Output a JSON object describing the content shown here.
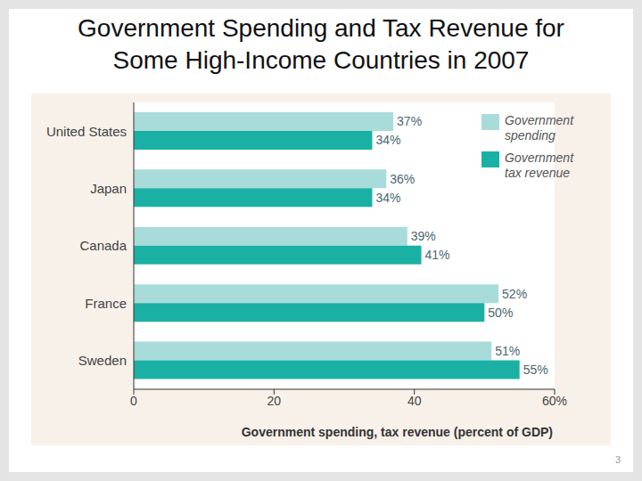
{
  "chart_data": {
    "type": "bar",
    "orientation": "horizontal",
    "title": "Government Spending and Tax Revenue for Some High-Income Countries in 2007",
    "categories": [
      "United States",
      "Japan",
      "Canada",
      "France",
      "Sweden"
    ],
    "series": [
      {
        "name": "Government spending",
        "color": "#a8dcda",
        "values": [
          37,
          36,
          39,
          52,
          51
        ],
        "value_labels": [
          "37%",
          "36%",
          "39%",
          "52%",
          "51%"
        ]
      },
      {
        "name": "Government tax revenue",
        "color": "#1bb0a4",
        "values": [
          34,
          34,
          41,
          50,
          55
        ],
        "value_labels": [
          "34%",
          "34%",
          "41%",
          "50%",
          "55%"
        ]
      }
    ],
    "x_label": "Government spending, tax revenue (percent of GDP)",
    "xlim": [
      0,
      60
    ],
    "xticks": [
      0,
      20,
      40,
      {
        "value": 60,
        "label": "60%"
      }
    ],
    "data_labels": true,
    "grid": false,
    "legend": "upper right"
  },
  "page_number": "3"
}
